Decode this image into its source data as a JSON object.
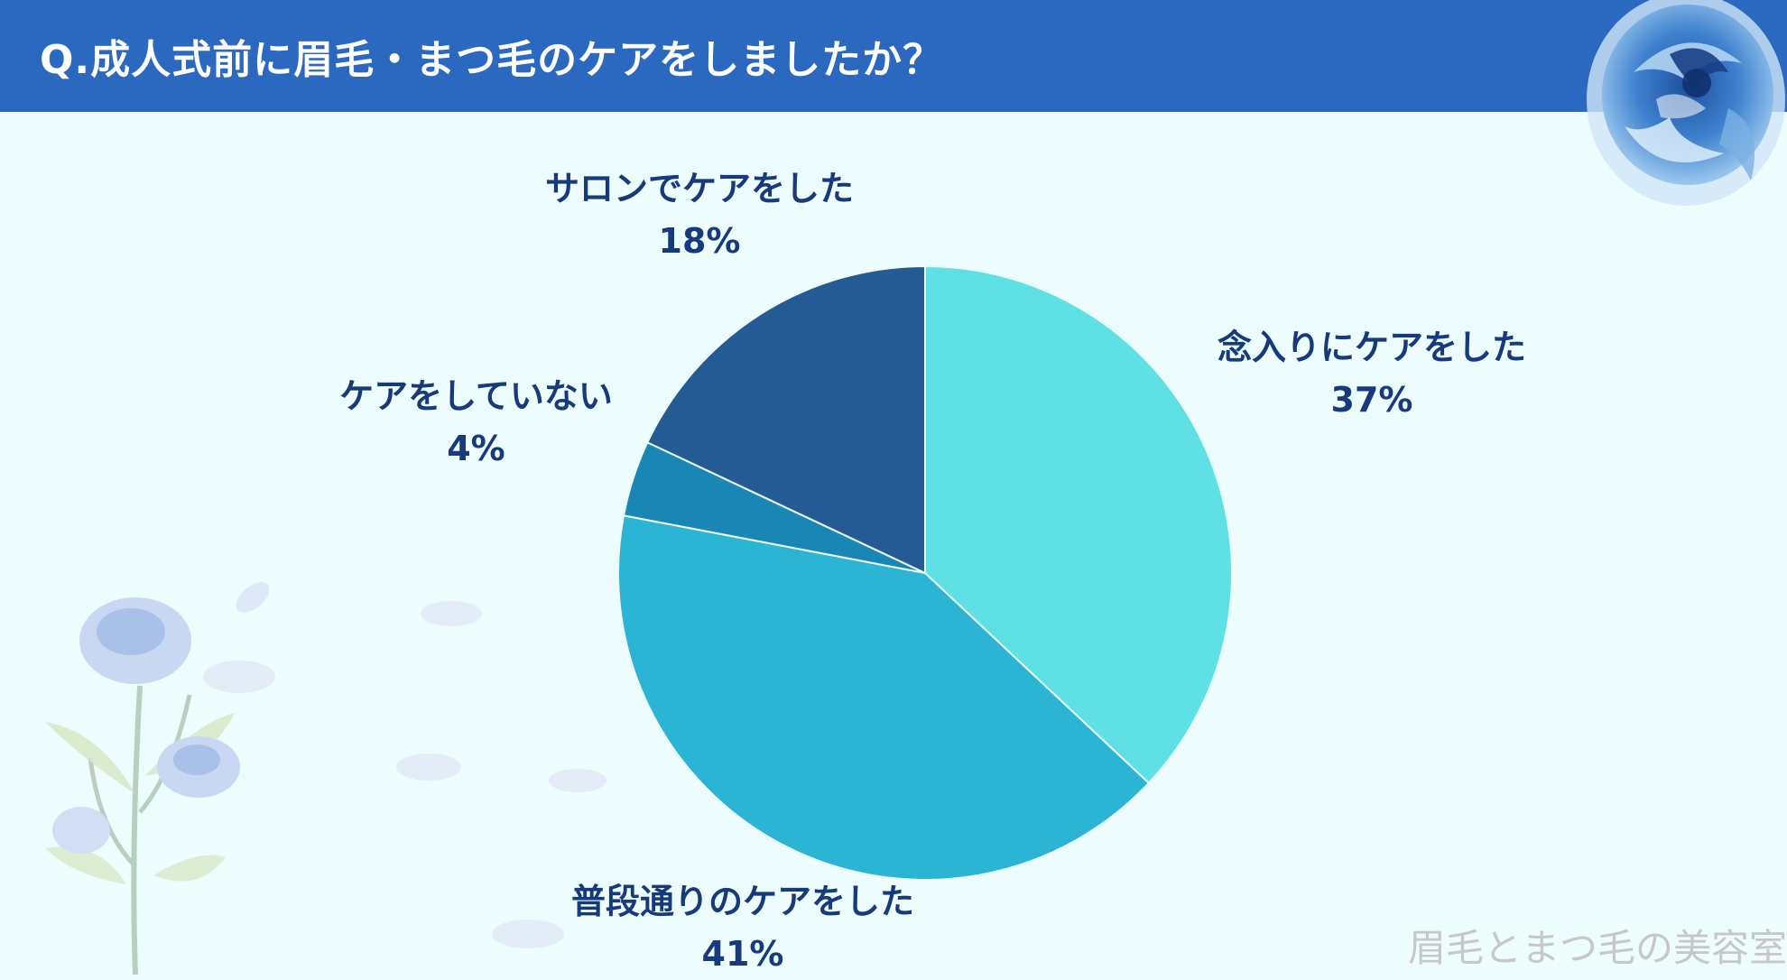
{
  "header": {
    "title": "Q.成人式前に眉毛・まつ毛のケアをしましたか？"
  },
  "watermark": "眉毛とまつ毛の美容室",
  "chart_data": {
    "type": "pie",
    "title": "Q.成人式前に眉毛・まつ毛のケアをしましたか？",
    "slices": [
      {
        "label": "念入りにケアをした",
        "value": 37,
        "display": "37%",
        "color": "#5fe0e4"
      },
      {
        "label": "普段通りのケアをした",
        "value": 41,
        "display": "41%",
        "color": "#2cb4d4"
      },
      {
        "label": "ケアをしていない",
        "value": 4,
        "display": "4%",
        "color": "#1a86b6"
      },
      {
        "label": "サロンでケアをした",
        "value": 18,
        "display": "18%",
        "color": "#255b94"
      }
    ],
    "start_angle": "12 o'clock",
    "direction": "clockwise",
    "legend": "none"
  }
}
